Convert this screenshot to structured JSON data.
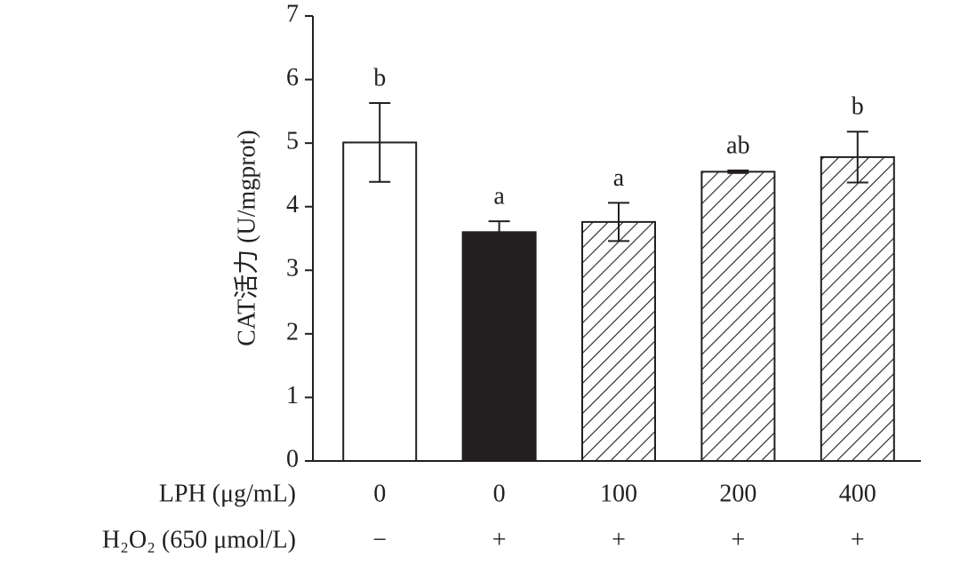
{
  "chart_data": {
    "type": "bar",
    "y_label": "CAT活力 (U/mgprot)",
    "row_labels": [
      "LPH (μg/mL)",
      "H₂O₂ (650 μmol/L)"
    ],
    "categories": [
      "0",
      "0",
      "100",
      "200",
      "400"
    ],
    "categories2": [
      "−",
      "+",
      "+",
      "+",
      "+"
    ],
    "values": [
      5.01,
      3.6,
      3.76,
      4.55,
      4.78
    ],
    "errors": [
      0.62,
      0.17,
      0.3,
      0.02,
      0.4
    ],
    "value_labels": [
      "b",
      "a",
      "a",
      "ab",
      "b"
    ],
    "colors": [
      "#ffffff",
      "#231f20",
      "#ffffff",
      "#ffffff",
      "#ffffff"
    ],
    "hatch": [
      false,
      false,
      true,
      true,
      true
    ],
    "ylim": [
      0,
      7
    ],
    "yticks": [
      0,
      1,
      2,
      3,
      4,
      5,
      6,
      7
    ],
    "grid": false
  }
}
